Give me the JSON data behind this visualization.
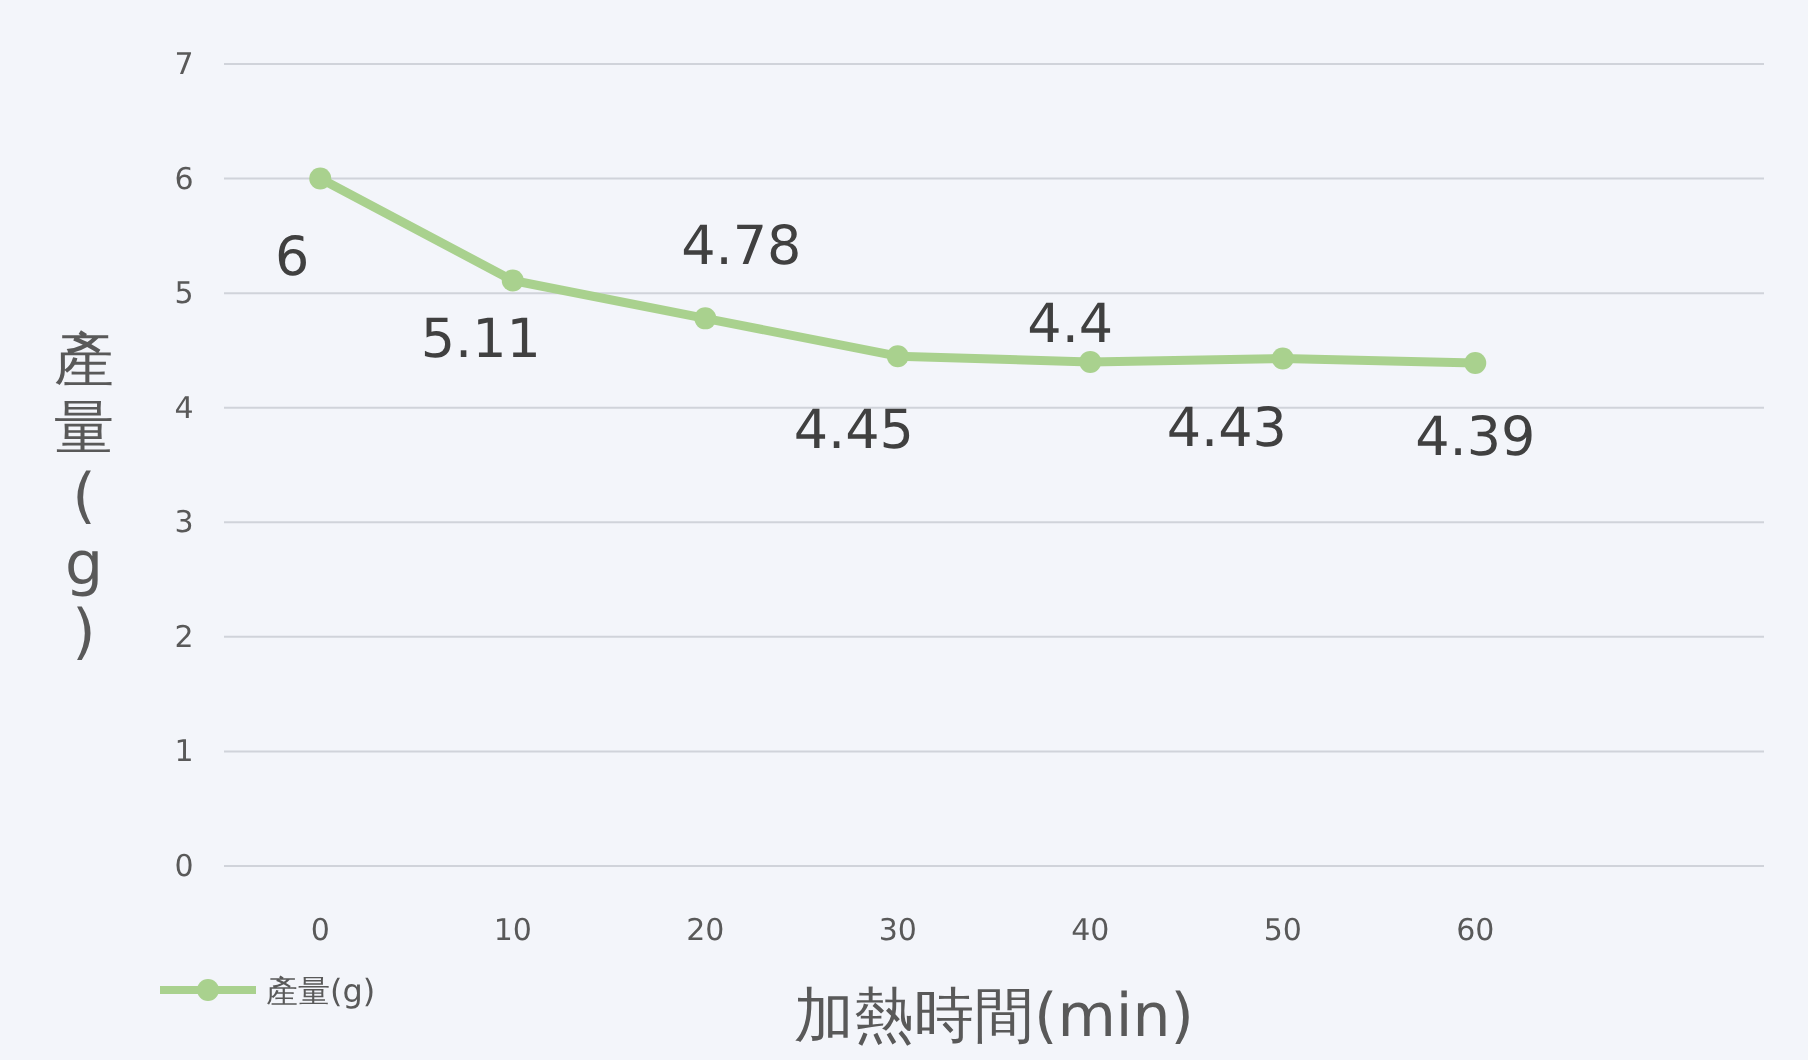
{
  "chart_data": {
    "type": "line",
    "xlabel": "加熱時間(min)",
    "ylabel": "產量(g)",
    "x": [
      0,
      10,
      20,
      30,
      40,
      50,
      60
    ],
    "series": [
      {
        "name": "產量(g)",
        "color": "#a9d18e",
        "values": [
          6,
          5.11,
          4.78,
          4.45,
          4.4,
          4.43,
          4.39
        ]
      }
    ],
    "xlim": [
      -5,
      75
    ],
    "xticks": [
      0,
      10,
      20,
      30,
      40,
      50,
      60
    ],
    "ylim": [
      0,
      7
    ],
    "yticks": [
      0,
      1,
      2,
      3,
      4,
      5,
      6,
      7
    ],
    "grid": "y",
    "legend": "bottom left",
    "marker": "circle",
    "line_style": "solid",
    "data_labels": true
  }
}
